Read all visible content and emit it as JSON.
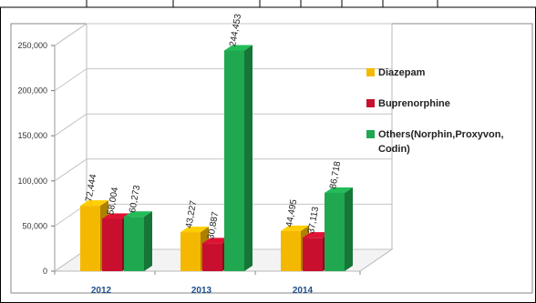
{
  "chart_data": {
    "type": "bar",
    "categories": [
      "2012",
      "2013",
      "2014"
    ],
    "series": [
      {
        "name": "Diazepam",
        "values": [
          72444,
          43227,
          44495
        ],
        "labels": [
          "72,444",
          "43,227",
          "44,495"
        ],
        "color": "#f5b800"
      },
      {
        "name": "Buprenorphine",
        "values": [
          58004,
          30887,
          37113
        ],
        "labels": [
          "58,004",
          "30,887",
          "37,113"
        ],
        "color": "#c8102e"
      },
      {
        "name": "Others(Norphin,Proxyvon, Codin)",
        "legend_lines": [
          "Others(Norphin,Proxyvon,",
          "Codin)"
        ],
        "values": [
          60273,
          244453,
          86718
        ],
        "labels": [
          "60,273",
          "244,453",
          "86,718"
        ],
        "color": "#1fa84f"
      }
    ],
    "ylim": [
      0,
      250000
    ],
    "yticks": [
      0,
      50000,
      100000,
      150000,
      200000,
      250000
    ],
    "ytick_labels": [
      "0",
      "50,000",
      "100,000",
      "150,000",
      "200,000",
      "250,000"
    ],
    "grid": true,
    "legend": "right"
  }
}
